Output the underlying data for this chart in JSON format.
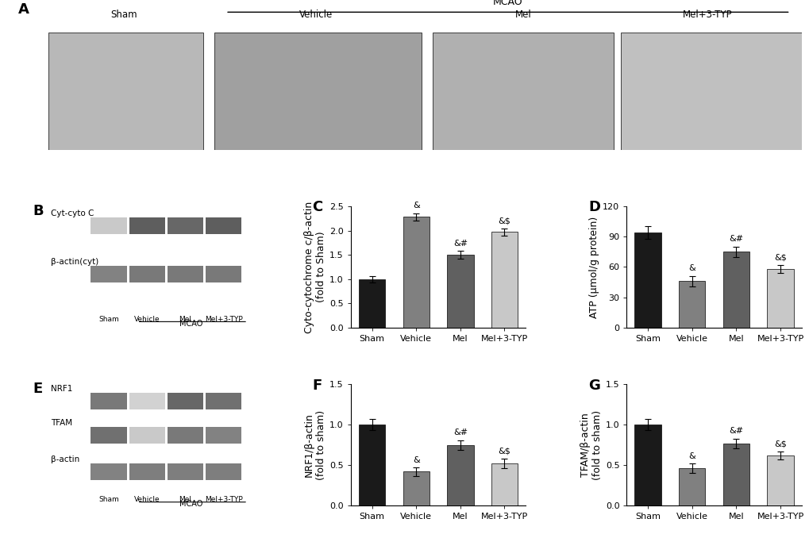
{
  "categories": [
    "Sham",
    "Vehicle",
    "Mel",
    "Mel+3-TYP"
  ],
  "bar_colors": [
    "#1a1a1a",
    "#808080",
    "#606060",
    "#c8c8c8"
  ],
  "panel_C": {
    "values": [
      1.0,
      2.28,
      1.5,
      1.97
    ],
    "errors": [
      0.07,
      0.08,
      0.08,
      0.07
    ],
    "ylabel": "Cyto-cytochrome c/β-actin\n(fold to Sham)",
    "ylim": [
      0,
      2.5
    ],
    "yticks": [
      0.0,
      0.5,
      1.0,
      1.5,
      2.0,
      2.5
    ],
    "annotations": [
      "",
      "&",
      "&#",
      "&$"
    ],
    "label": "C"
  },
  "panel_D": {
    "values": [
      94,
      46,
      75,
      58
    ],
    "errors": [
      6,
      5,
      5,
      4
    ],
    "ylabel": "ATP (μmol/g protein)",
    "ylim": [
      0,
      120
    ],
    "yticks": [
      0,
      30,
      60,
      90,
      120
    ],
    "annotations": [
      "",
      "&",
      "&#",
      "&$"
    ],
    "label": "D"
  },
  "panel_F": {
    "values": [
      1.0,
      0.42,
      0.75,
      0.52
    ],
    "errors": [
      0.07,
      0.05,
      0.06,
      0.06
    ],
    "ylabel": "NRF1/β-actin\n(fold to sham)",
    "ylim": [
      0,
      1.5
    ],
    "yticks": [
      0.0,
      0.5,
      1.0,
      1.5
    ],
    "annotations": [
      "",
      "&",
      "&#",
      "&$"
    ],
    "label": "F"
  },
  "panel_G": {
    "values": [
      1.0,
      0.46,
      0.77,
      0.62
    ],
    "errors": [
      0.07,
      0.06,
      0.06,
      0.05
    ],
    "ylabel": "TFAM/β-actin\n(fold to sham)",
    "ylim": [
      0,
      1.5
    ],
    "yticks": [
      0.0,
      0.5,
      1.0,
      1.5
    ],
    "annotations": [
      "",
      "&",
      "&#",
      "&$"
    ],
    "label": "G"
  },
  "panel_A_label": "A",
  "panel_B_label": "B",
  "panel_E_label": "E",
  "panel_A_groups": [
    "Sham",
    "Vehicle",
    "Mel",
    "Mel+3-TYP"
  ],
  "panel_A_mcao_label": "MCAO",
  "background_color": "#ffffff",
  "label_fontsize": 12,
  "tick_fontsize": 8,
  "axis_label_fontsize": 9,
  "bar_width": 0.6
}
